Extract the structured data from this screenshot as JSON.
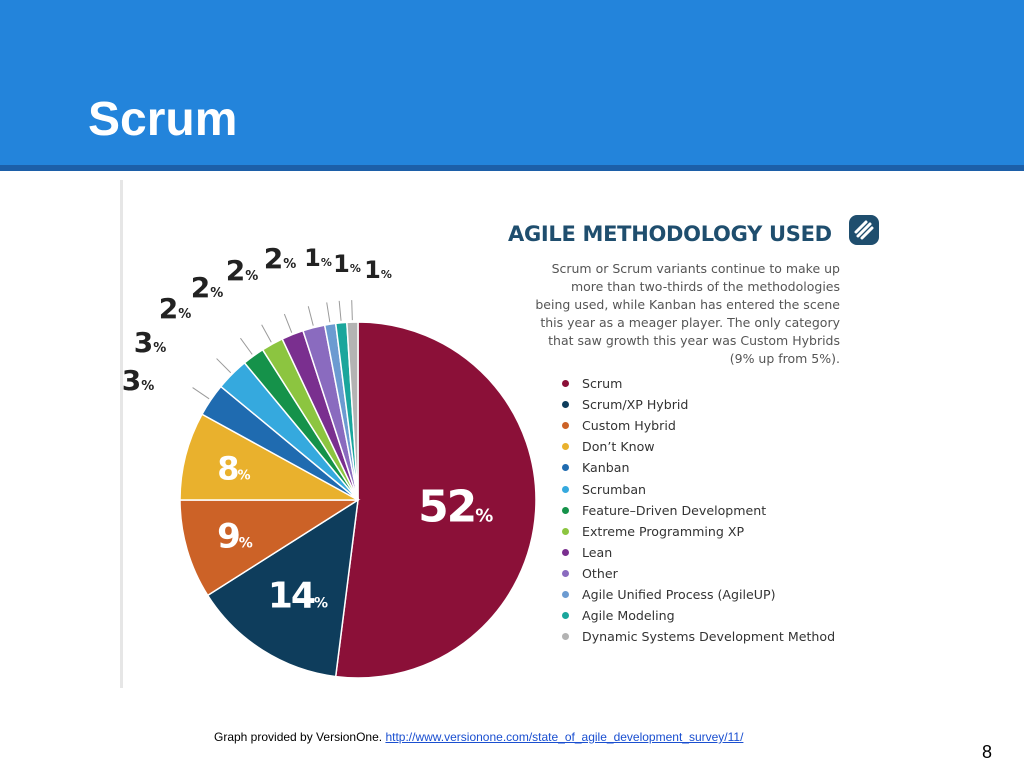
{
  "slide": {
    "title": "Scrum",
    "footer_text": "Graph provided by VersionOne. ",
    "footer_link": "http://www.versionone.com/state_of_agile_development_survey/11/",
    "page_number": "8"
  },
  "chart_data": {
    "type": "pie",
    "title": "AGILE METHODOLOGY USED",
    "description": "Scrum or Scrum variants continue to make up more than two-thirds of the methodologies being used, while Kanban has entered the scene this year as a meager player. The only category that saw growth this year was Custom Hybrids (9% up from 5%).",
    "description_lines": [
      "Scrum or Scrum variants continue to make up",
      "more than two-thirds of the methodologies",
      "being used, while Kanban has entered the scene",
      "this year as a meager player. The only category",
      "that saw growth this year was Custom Hybrids",
      "(9% up from 5%)."
    ],
    "unit": "%",
    "slices": [
      {
        "label": "Scrum",
        "value": 52,
        "color": "#8b1038"
      },
      {
        "label": "Scrum/XP Hybrid",
        "value": 14,
        "color": "#0e3d5c"
      },
      {
        "label": "Custom Hybrid",
        "value": 9,
        "color": "#cc6227"
      },
      {
        "label": "Don’t Know",
        "value": 8,
        "color": "#e9b12d"
      },
      {
        "label": "Kanban",
        "value": 3,
        "color": "#1f6bb0"
      },
      {
        "label": "Scrumban",
        "value": 3,
        "color": "#35a9de"
      },
      {
        "label": "Feature–Driven Development",
        "value": 2,
        "color": "#15924a"
      },
      {
        "label": "Extreme Programming XP",
        "value": 2,
        "color": "#8cc540"
      },
      {
        "label": "Lean",
        "value": 2,
        "color": "#7a2f8f"
      },
      {
        "label": "Other",
        "value": 2,
        "color": "#8a6bbf"
      },
      {
        "label": "Agile Unified Process (AgileUP)",
        "value": 1,
        "color": "#6c9bd1"
      },
      {
        "label": "Agile Modeling",
        "value": 1,
        "color": "#1aa69c"
      },
      {
        "label": "Dynamic Systems Development Method",
        "value": 1,
        "color": "#b3b3b3"
      }
    ]
  }
}
